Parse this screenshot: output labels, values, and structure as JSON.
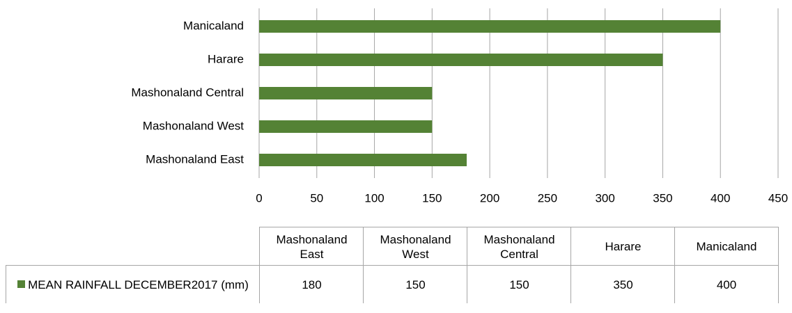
{
  "chart_data": {
    "type": "bar",
    "orientation": "horizontal",
    "categories": [
      "Mashonaland East",
      "Mashonaland West",
      "Mashonaland Central",
      "Harare",
      "Manicaland"
    ],
    "series": [
      {
        "name": "MEAN RAINFALL DECEMBER2017 (mm)",
        "color": "#548235",
        "values": [
          180,
          150,
          150,
          350,
          400
        ]
      }
    ],
    "xlim": [
      0,
      450
    ],
    "xticks": [
      0,
      50,
      100,
      150,
      200,
      250,
      300,
      350,
      400,
      450
    ],
    "grid": true,
    "data_table": true
  }
}
